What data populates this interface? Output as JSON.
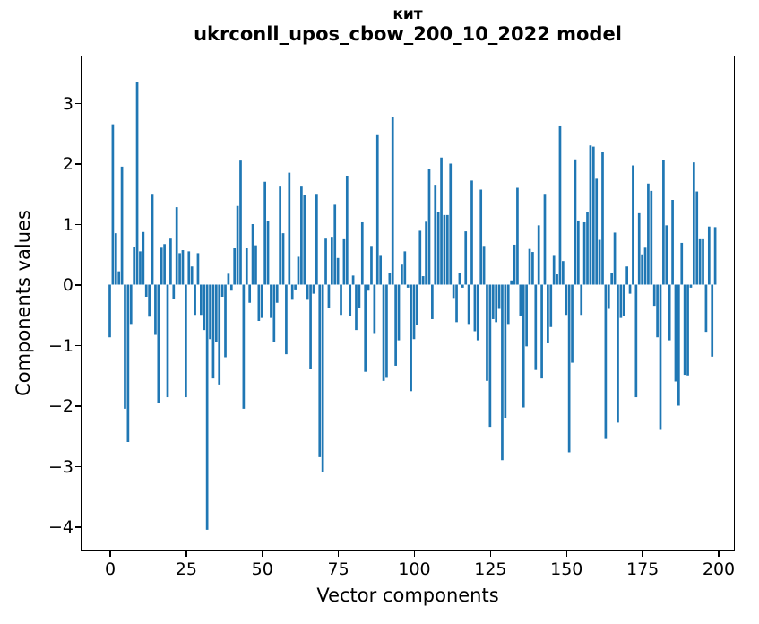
{
  "figure": {
    "suptitle": "кит",
    "axes_title": "ukrconll_upos_cbow_200_10_2022 model"
  },
  "chart_data": {
    "type": "bar",
    "title": "кит",
    "subtitle": "ukrconll_upos_cbow_200_10_2022 model",
    "xlabel": "Vector components",
    "ylabel": "Components values",
    "bar_color": "#1f77b4",
    "n_bars": 200,
    "xlim": [
      -10,
      205.3
    ],
    "ylim": [
      -4.4,
      3.79
    ],
    "grid": false,
    "legend": null,
    "x_tick_values": [
      0,
      25,
      50,
      75,
      100,
      125,
      150,
      175,
      200
    ],
    "x_tick_labels": [
      "0",
      "25",
      "50",
      "75",
      "100",
      "125",
      "150",
      "175",
      "200"
    ],
    "y_tick_values": [
      3,
      2,
      1,
      0,
      -1,
      -2,
      -3,
      -4
    ],
    "y_tick_labels": [
      "3",
      "2",
      "1",
      "0",
      "−1",
      "−2",
      "−3",
      "−4"
    ],
    "x": [
      0,
      1,
      2,
      3,
      4,
      5,
      6,
      7,
      8,
      9,
      10,
      11,
      12,
      13,
      14,
      15,
      16,
      17,
      18,
      19,
      20,
      21,
      22,
      23,
      24,
      25,
      26,
      27,
      28,
      29,
      30,
      31,
      32,
      33,
      34,
      35,
      36,
      37,
      38,
      39,
      40,
      41,
      42,
      43,
      44,
      45,
      46,
      47,
      48,
      49,
      50,
      51,
      52,
      53,
      54,
      55,
      56,
      57,
      58,
      59,
      60,
      61,
      62,
      63,
      64,
      65,
      66,
      67,
      68,
      69,
      70,
      71,
      72,
      73,
      74,
      75,
      76,
      77,
      78,
      79,
      80,
      81,
      82,
      83,
      84,
      85,
      86,
      87,
      88,
      89,
      90,
      91,
      92,
      93,
      94,
      95,
      96,
      97,
      98,
      99,
      100,
      101,
      102,
      103,
      104,
      105,
      106,
      107,
      108,
      109,
      110,
      111,
      112,
      113,
      114,
      115,
      116,
      117,
      118,
      119,
      120,
      121,
      122,
      123,
      124,
      125,
      126,
      127,
      128,
      129,
      130,
      131,
      132,
      133,
      134,
      135,
      136,
      137,
      138,
      139,
      140,
      141,
      142,
      143,
      144,
      145,
      146,
      147,
      148,
      149,
      150,
      151,
      152,
      153,
      154,
      155,
      156,
      157,
      158,
      159,
      160,
      161,
      162,
      163,
      164,
      165,
      166,
      167,
      168,
      169,
      170,
      171,
      172,
      173,
      174,
      175,
      176,
      177,
      178,
      179,
      180,
      181,
      182,
      183,
      184,
      185,
      186,
      187,
      188,
      189,
      190,
      191,
      192,
      193,
      194,
      195,
      196,
      197,
      198,
      199
    ],
    "values": [
      -0.87,
      2.65,
      0.85,
      0.22,
      1.95,
      -2.05,
      -2.6,
      -0.65,
      0.62,
      3.35,
      0.55,
      0.87,
      -0.2,
      -0.53,
      1.5,
      -0.83,
      -1.95,
      0.61,
      0.67,
      -1.86,
      0.76,
      -0.23,
      1.28,
      0.52,
      0.57,
      -1.86,
      0.55,
      0.3,
      -0.5,
      0.52,
      -0.5,
      -0.75,
      -4.05,
      -0.9,
      -1.55,
      -0.95,
      -1.65,
      -0.2,
      -1.2,
      0.18,
      -0.1,
      0.6,
      1.3,
      2.05,
      -2.05,
      0.6,
      -0.3,
      1.0,
      0.65,
      -0.6,
      -0.55,
      1.7,
      1.05,
      -0.55,
      -0.95,
      -0.3,
      1.62,
      0.85,
      -1.15,
      1.85,
      -0.25,
      -0.08,
      0.46,
      1.62,
      1.48,
      -0.25,
      -1.4,
      -0.15,
      1.5,
      -2.85,
      -3.1,
      0.76,
      -0.38,
      0.79,
      1.32,
      0.44,
      -0.5,
      0.75,
      1.8,
      -0.52,
      0.15,
      -0.75,
      -0.38,
      1.03,
      -1.44,
      -0.1,
      0.64,
      -0.8,
      2.47,
      0.49,
      -1.59,
      -1.54,
      0.2,
      2.77,
      -1.34,
      -0.92,
      0.33,
      0.55,
      -0.05,
      -1.76,
      -0.9,
      -0.67,
      0.89,
      0.14,
      1.04,
      1.91,
      -0.57,
      1.65,
      1.2,
      2.1,
      1.15,
      1.15,
      2.0,
      -0.22,
      -0.62,
      0.19,
      -0.05,
      0.88,
      -0.65,
      1.72,
      -0.77,
      -0.92,
      1.57,
      0.64,
      -1.59,
      -2.35,
      -0.57,
      -0.62,
      -0.4,
      -2.9,
      -2.2,
      -0.65,
      0.07,
      0.66,
      1.6,
      -0.52,
      -2.03,
      -1.02,
      0.59,
      0.54,
      -1.41,
      0.98,
      -1.55,
      1.5,
      -0.97,
      -0.7,
      0.49,
      0.17,
      2.63,
      0.39,
      -0.5,
      -2.77,
      -1.29,
      2.07,
      1.06,
      -0.5,
      1.03,
      1.2,
      2.3,
      2.28,
      1.75,
      0.74,
      2.2,
      -2.55,
      -0.4,
      0.2,
      0.86,
      -2.28,
      -0.55,
      -0.52,
      0.3,
      -0.15,
      1.97,
      -1.86,
      1.18,
      0.5,
      0.61,
      1.67,
      1.55,
      -0.35,
      -0.87,
      -2.4,
      2.06,
      0.98,
      -0.92,
      1.4,
      -1.6,
      -2.0,
      0.69,
      -1.49,
      -1.5,
      -0.05,
      2.02,
      1.54,
      0.75,
      0.75,
      -0.78,
      0.96,
      -1.19,
      0.95
    ]
  }
}
